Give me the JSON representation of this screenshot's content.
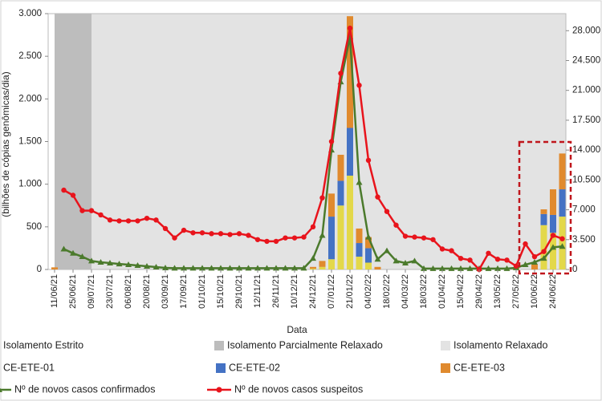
{
  "chart_data": {
    "type": "combo",
    "x_label": "Data",
    "y_label": "(bilhões de cópias genômicas/dia)",
    "categories": [
      "11/06/21",
      null,
      "25/06/21",
      null,
      "09/07/21",
      null,
      "23/07/21",
      null,
      "06/08/21",
      null,
      "20/08/21",
      null,
      "03/09/21",
      null,
      "17/09/21",
      null,
      "01/10/21",
      null,
      "15/10/21",
      null,
      "29/10/21",
      null,
      "12/11/21",
      null,
      "26/11/21",
      null,
      "10/12/21",
      null,
      "24/12/21",
      null,
      "07/01/22",
      null,
      "21/01/22",
      null,
      "04/02/22",
      null,
      "18/02/22",
      null,
      "04/03/22",
      null,
      "18/03/22",
      null,
      "01/04/22",
      null,
      "15/04/22",
      null,
      "29/04/22",
      null,
      "13/05/22",
      null,
      "27/05/22",
      null,
      "10/06/22",
      null,
      "24/06/22",
      null
    ],
    "phases": [
      {
        "name": "Isolamento Estrito",
        "color": "#7f7f7f"
      },
      {
        "name": "Isolamento Parcialmente Relaxado",
        "color": "#bdbdbd",
        "from": 0,
        "to": 4
      },
      {
        "name": "Isolamento Relaxado",
        "color": "#e3e3e3",
        "from": 4,
        "to": 55
      }
    ],
    "series": [
      {
        "name": "CE-ETE-01",
        "type": "bar",
        "color": "#e3d84a",
        "values": [
          0,
          0,
          0,
          0,
          0,
          0,
          0,
          0,
          0,
          0,
          0,
          0,
          0,
          0,
          0,
          0,
          0,
          0,
          0,
          0,
          0,
          0,
          0,
          0,
          0,
          0,
          0,
          0,
          10,
          30,
          120,
          750,
          1100,
          150,
          80,
          0,
          0,
          0,
          0,
          0,
          0,
          0,
          0,
          0,
          0,
          0,
          0,
          0,
          0,
          0,
          0,
          0,
          0,
          520,
          430,
          620
        ]
      },
      {
        "name": "CE-ETE-02",
        "type": "bar",
        "color": "#4472c4",
        "values": [
          0,
          0,
          0,
          0,
          0,
          0,
          0,
          0,
          0,
          0,
          0,
          0,
          0,
          0,
          0,
          0,
          0,
          0,
          0,
          0,
          0,
          0,
          0,
          0,
          0,
          0,
          0,
          0,
          0,
          0,
          500,
          290,
          560,
          160,
          170,
          0,
          0,
          0,
          0,
          0,
          0,
          0,
          0,
          0,
          0,
          0,
          0,
          0,
          0,
          0,
          0,
          0,
          0,
          130,
          210,
          320
        ]
      },
      {
        "name": "CE-ETE-03",
        "type": "bar",
        "color": "#e08a2e",
        "values": [
          25,
          0,
          0,
          0,
          0,
          0,
          0,
          0,
          0,
          0,
          0,
          0,
          0,
          0,
          0,
          0,
          0,
          0,
          0,
          0,
          0,
          0,
          0,
          0,
          0,
          0,
          0,
          0,
          20,
          70,
          270,
          305,
          1310,
          170,
          130,
          30,
          0,
          0,
          0,
          0,
          0,
          0,
          0,
          0,
          0,
          0,
          0,
          0,
          0,
          0,
          20,
          0,
          60,
          55,
          300,
          420
        ]
      },
      {
        "name": "Nº de novos casos confirmados",
        "type": "line",
        "marker": "triangle",
        "axis": "y2",
        "color": "#4b7a2c",
        "values": [
          null,
          2400,
          1900,
          1500,
          1000,
          850,
          750,
          650,
          560,
          470,
          380,
          280,
          190,
          150,
          150,
          150,
          150,
          150,
          150,
          150,
          150,
          150,
          150,
          150,
          150,
          150,
          150,
          150,
          1300,
          4000,
          14000,
          22000,
          27300,
          10200,
          3800,
          1200,
          2200,
          1000,
          750,
          1000,
          100,
          100,
          100,
          100,
          100,
          100,
          100,
          100,
          100,
          100,
          200,
          560,
          850,
          1300,
          2600,
          2700
        ]
      },
      {
        "name": "Nº de novos casos suspeitos",
        "type": "line",
        "marker": "circle",
        "axis": "y2",
        "color": "#e8141c",
        "values": [
          null,
          9300,
          8700,
          6900,
          6900,
          6400,
          5800,
          5700,
          5700,
          5700,
          6000,
          5800,
          4800,
          3700,
          4600,
          4300,
          4300,
          4200,
          4200,
          4100,
          4200,
          4000,
          3500,
          3300,
          3300,
          3700,
          3700,
          3800,
          5000,
          8400,
          15000,
          23000,
          28300,
          21600,
          12800,
          8500,
          6800,
          5200,
          3900,
          3800,
          3700,
          3500,
          2400,
          2200,
          1300,
          1100,
          0,
          1900,
          1200,
          1100,
          400,
          3000,
          1500,
          2100,
          4000,
          3600
        ]
      }
    ],
    "ylim": [
      0,
      3000
    ],
    "yticks": [
      0,
      500,
      {
        "value": 1000,
        "label": "1.000"
      },
      {
        "value": 1500,
        "label": "1.500"
      },
      {
        "value": 2000,
        "label": "2.000"
      },
      {
        "value": 2500,
        "label": "2.500"
      },
      {
        "value": 3000,
        "label": "3.000"
      }
    ],
    "y2lim": [
      0,
      30000
    ],
    "y2ticks": [
      0,
      {
        "value": 3500,
        "label": "3.500"
      },
      {
        "value": 7000,
        "label": "7.000"
      },
      {
        "value": 10500,
        "label": "10.500"
      },
      {
        "value": 14000,
        "label": "14.000"
      },
      {
        "value": 17500,
        "label": "17.500"
      },
      {
        "value": 21000,
        "label": "21.000"
      },
      {
        "value": 24500,
        "label": "24.500"
      },
      {
        "value": 28000,
        "label": "28.000"
      }
    ]
  }
}
